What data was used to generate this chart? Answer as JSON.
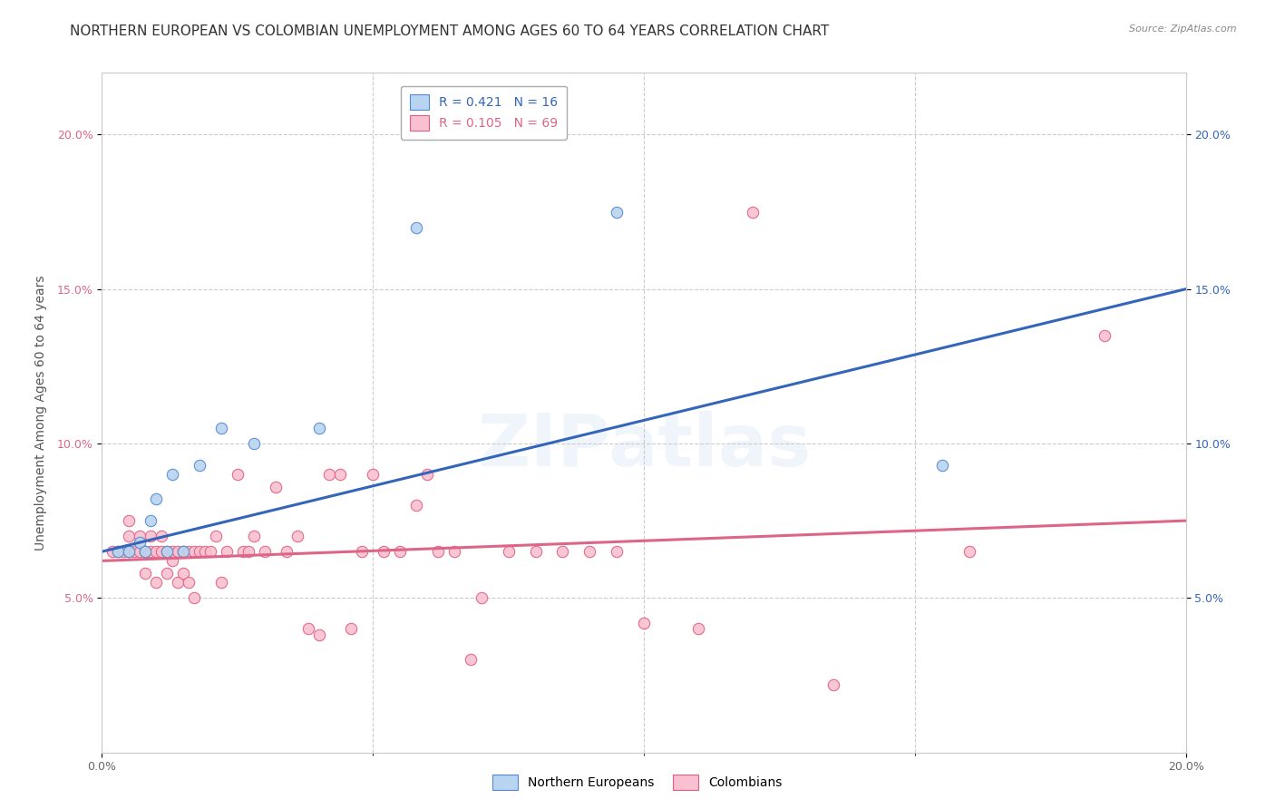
{
  "title": "NORTHERN EUROPEAN VS COLOMBIAN UNEMPLOYMENT AMONG AGES 60 TO 64 YEARS CORRELATION CHART",
  "source": "Source: ZipAtlas.com",
  "ylabel": "Unemployment Among Ages 60 to 64 years",
  "xmin": 0.0,
  "xmax": 0.2,
  "ymin": 0.0,
  "ymax": 0.22,
  "xticks_labeled": [
    0.0,
    0.2
  ],
  "xticks_minor": [
    0.05,
    0.1,
    0.15
  ],
  "yticks": [
    0.05,
    0.1,
    0.15,
    0.2
  ],
  "blue_R": 0.421,
  "blue_N": 16,
  "pink_R": 0.105,
  "pink_N": 69,
  "blue_label": "Northern Europeans",
  "pink_label": "Colombians",
  "blue_color": "#b8d4f0",
  "blue_edge": "#5588cc",
  "pink_color": "#f8c0d0",
  "pink_edge": "#e06080",
  "blue_line_color": "#3366bb",
  "pink_line_color": "#dd6688",
  "watermark": "ZIPatlas",
  "background_color": "#ffffff",
  "blue_scatter_x": [
    0.003,
    0.005,
    0.007,
    0.008,
    0.009,
    0.01,
    0.012,
    0.013,
    0.015,
    0.018,
    0.022,
    0.028,
    0.04,
    0.058,
    0.095,
    0.155
  ],
  "blue_scatter_y": [
    0.065,
    0.065,
    0.068,
    0.065,
    0.075,
    0.082,
    0.065,
    0.09,
    0.065,
    0.093,
    0.105,
    0.1,
    0.105,
    0.17,
    0.175,
    0.093
  ],
  "pink_scatter_x": [
    0.002,
    0.003,
    0.004,
    0.005,
    0.005,
    0.005,
    0.006,
    0.007,
    0.007,
    0.008,
    0.008,
    0.009,
    0.009,
    0.01,
    0.01,
    0.011,
    0.011,
    0.012,
    0.012,
    0.013,
    0.013,
    0.014,
    0.014,
    0.015,
    0.015,
    0.016,
    0.016,
    0.017,
    0.017,
    0.018,
    0.019,
    0.02,
    0.021,
    0.022,
    0.023,
    0.025,
    0.026,
    0.027,
    0.028,
    0.03,
    0.032,
    0.034,
    0.036,
    0.038,
    0.04,
    0.042,
    0.044,
    0.046,
    0.048,
    0.05,
    0.052,
    0.055,
    0.058,
    0.06,
    0.062,
    0.065,
    0.068,
    0.07,
    0.075,
    0.08,
    0.085,
    0.09,
    0.095,
    0.1,
    0.11,
    0.12,
    0.135,
    0.16,
    0.185
  ],
  "pink_scatter_y": [
    0.065,
    0.065,
    0.065,
    0.065,
    0.07,
    0.075,
    0.065,
    0.065,
    0.07,
    0.058,
    0.065,
    0.065,
    0.07,
    0.055,
    0.065,
    0.065,
    0.07,
    0.058,
    0.065,
    0.062,
    0.065,
    0.055,
    0.065,
    0.058,
    0.065,
    0.055,
    0.065,
    0.05,
    0.065,
    0.065,
    0.065,
    0.065,
    0.07,
    0.055,
    0.065,
    0.09,
    0.065,
    0.065,
    0.07,
    0.065,
    0.086,
    0.065,
    0.07,
    0.04,
    0.038,
    0.09,
    0.09,
    0.04,
    0.065,
    0.09,
    0.065,
    0.065,
    0.08,
    0.09,
    0.065,
    0.065,
    0.03,
    0.05,
    0.065,
    0.065,
    0.065,
    0.065,
    0.065,
    0.042,
    0.04,
    0.175,
    0.022,
    0.065,
    0.135
  ],
  "blue_line_y_start": 0.065,
  "blue_line_y_end": 0.15,
  "pink_line_y_start": 0.062,
  "pink_line_y_end": 0.075,
  "title_fontsize": 11,
  "axis_label_fontsize": 10,
  "tick_fontsize": 9,
  "legend_fontsize": 10,
  "marker_size": 80
}
